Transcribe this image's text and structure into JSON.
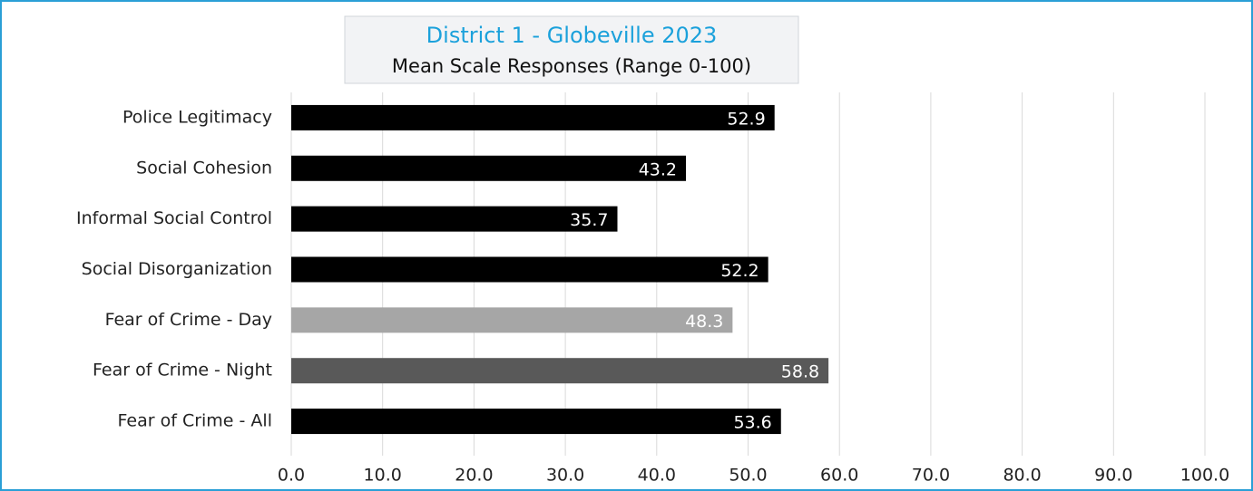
{
  "chart_data": {
    "type": "bar",
    "orientation": "horizontal",
    "title": "District 1 - Globeville 2023",
    "subtitle": "Mean Scale Responses (Range 0-100)",
    "categories": [
      "Police Legitimacy",
      "Social Cohesion",
      "Informal Social Control",
      "Social Disorganization",
      "Fear of Crime - Day",
      "Fear of Crime - Night",
      "Fear of Crime - All"
    ],
    "values": [
      52.9,
      43.2,
      35.7,
      52.2,
      48.3,
      58.8,
      53.6
    ],
    "colors": [
      "#000000",
      "#000000",
      "#000000",
      "#000000",
      "#a6a6a6",
      "#595959",
      "#000000"
    ],
    "xlim": [
      0,
      100
    ],
    "xticks": [
      {
        "value": 0,
        "label": "0.0"
      },
      {
        "value": 10,
        "label": "10.0"
      },
      {
        "value": 20,
        "label": "20.0"
      },
      {
        "value": 30,
        "label": "30.0"
      },
      {
        "value": 40,
        "label": "40.0"
      },
      {
        "value": 50,
        "label": "50.0"
      },
      {
        "value": 60,
        "label": "60.0"
      },
      {
        "value": 70,
        "label": "70.0"
      },
      {
        "value": 80,
        "label": "80.0"
      },
      {
        "value": 90,
        "label": "90.0"
      },
      {
        "value": 100,
        "label": "100.0"
      }
    ],
    "grid": true
  }
}
